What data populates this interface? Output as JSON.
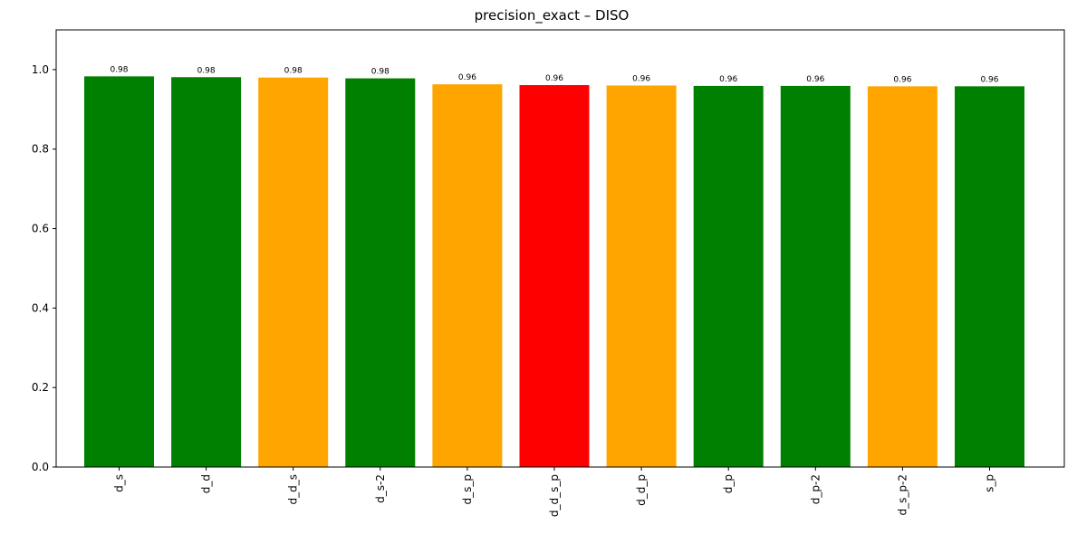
{
  "chart_data": {
    "type": "bar",
    "title": "precision_exact – DISO",
    "xlabel": "",
    "ylabel": "",
    "categories": [
      "d_s",
      "d_d",
      "d_d_s",
      "d_s-2",
      "d_s_p",
      "d_d_s_p",
      "d_d_p",
      "d_p",
      "d_p-2",
      "d_s_p-2",
      "s_p"
    ],
    "values": [
      0.983,
      0.981,
      0.98,
      0.978,
      0.963,
      0.961,
      0.96,
      0.959,
      0.959,
      0.958,
      0.958
    ],
    "value_labels": [
      "0.98",
      "0.98",
      "0.98",
      "0.98",
      "0.96",
      "0.96",
      "0.96",
      "0.96",
      "0.96",
      "0.96",
      "0.96"
    ],
    "bar_colors": [
      "#008000",
      "#008000",
      "#ffa500",
      "#008000",
      "#ffa500",
      "#ff0000",
      "#ffa500",
      "#008000",
      "#008000",
      "#ffa500",
      "#008000"
    ],
    "ylim": [
      0,
      1.1
    ],
    "yticks": [
      0.0,
      0.2,
      0.4,
      0.6,
      0.8,
      1.0
    ],
    "ytick_labels": [
      "0.0",
      "0.2",
      "0.4",
      "0.6",
      "0.8",
      "1.0"
    ],
    "grid": false,
    "xtick_rotation": "vertical"
  }
}
